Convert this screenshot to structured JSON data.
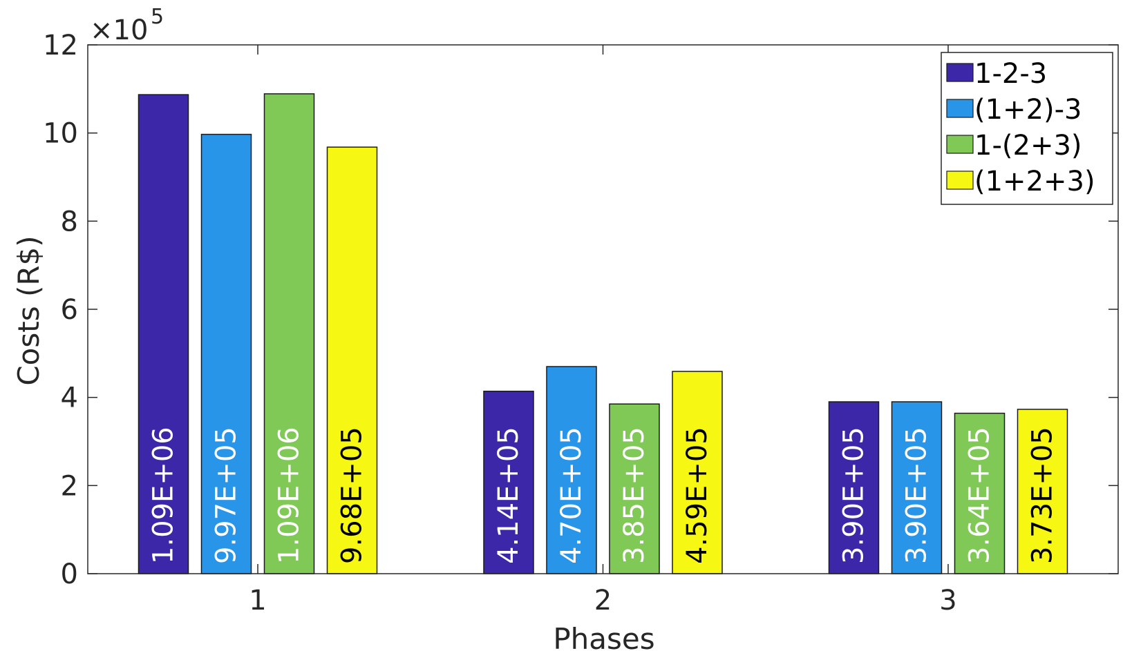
{
  "chart_data": {
    "type": "bar",
    "xlabel": "Phases",
    "ylabel": "Costs (R$)",
    "exponent_base": "×10",
    "exponent_power": "5",
    "categories": [
      "1",
      "2",
      "3"
    ],
    "yticks": [
      "0",
      "2",
      "4",
      "6",
      "8",
      "10",
      "12"
    ],
    "ylim": [
      0,
      12
    ],
    "y_scale": 100000,
    "legend_position": "top-right",
    "series": [
      {
        "name": "1-2-3",
        "color": "#3b27a8",
        "label_color": "#ffffff",
        "values": [
          1087000,
          414000,
          390000
        ],
        "labels": [
          "1.09E+06",
          "4.14E+05",
          "3.90E+05"
        ]
      },
      {
        "name": "(1+2)-3",
        "color": "#2995e8",
        "label_color": "#ffffff",
        "values": [
          997000,
          470000,
          390000
        ],
        "labels": [
          "9.97E+05",
          "4.70E+05",
          "3.90E+05"
        ]
      },
      {
        "name": "1-(2+3)",
        "color": "#80c956",
        "label_color": "#ffffff",
        "values": [
          1089000,
          385000,
          364000
        ],
        "labels": [
          "1.09E+06",
          "3.85E+05",
          "3.64E+05"
        ]
      },
      {
        "name": "(1+2+3)",
        "color": "#f7f714",
        "label_color": "#000000",
        "values": [
          968000,
          459000,
          373000
        ],
        "labels": [
          "9.68E+05",
          "4.59E+05",
          "3.73E+05"
        ]
      }
    ]
  }
}
